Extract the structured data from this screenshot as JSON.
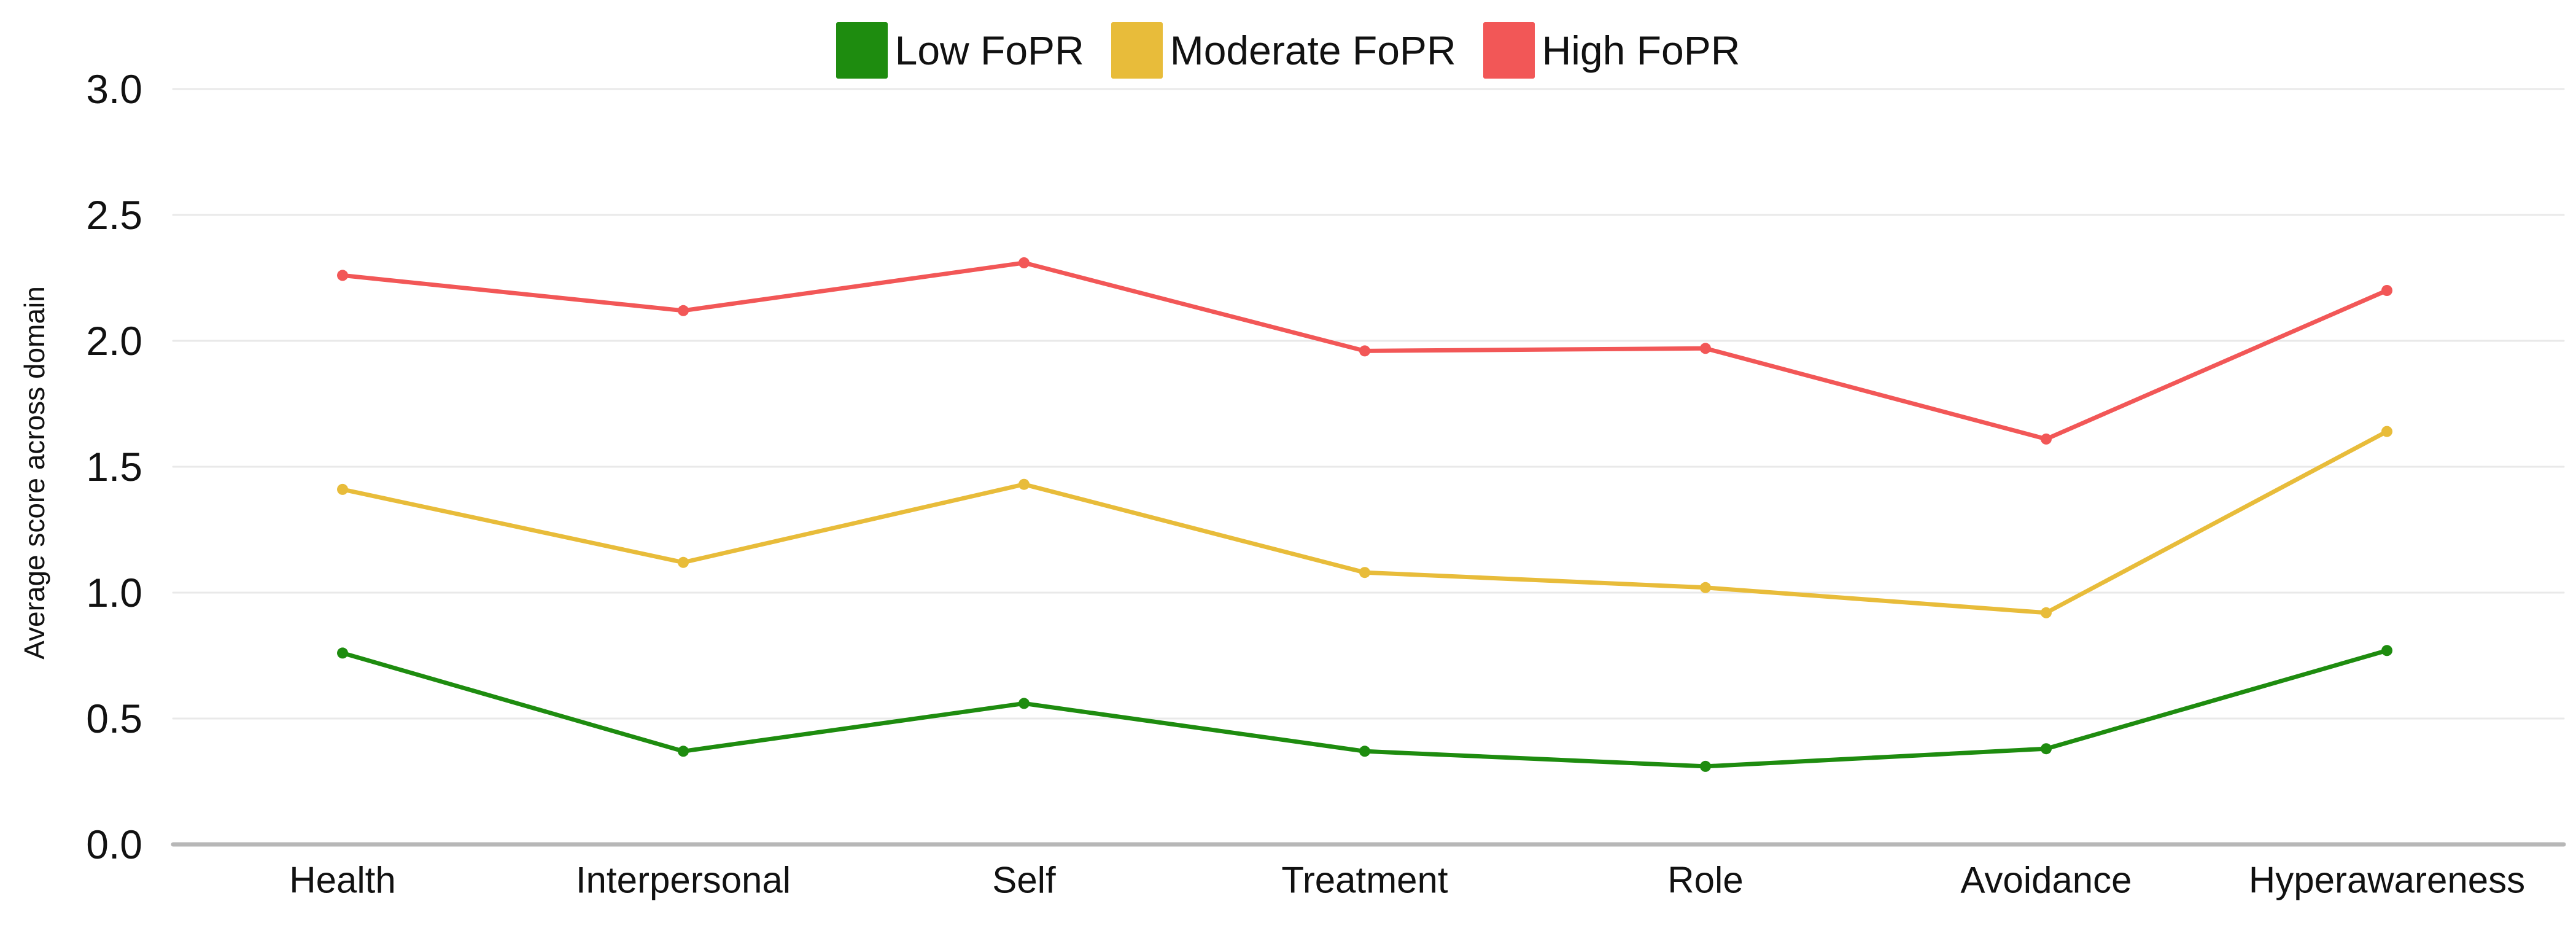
{
  "chart_data": {
    "type": "line",
    "title": "",
    "xlabel": "",
    "ylabel": "Average score across domain",
    "categories": [
      "Health",
      "Interpersonal",
      "Self",
      "Treatment",
      "Role",
      "Avoidance",
      "Hyperawareness"
    ],
    "series": [
      {
        "name": "Low FoPR",
        "color": "#1e8c0f",
        "values": [
          0.76,
          0.37,
          0.56,
          0.37,
          0.31,
          0.38,
          0.77
        ]
      },
      {
        "name": "Moderate FoPR",
        "color": "#e8bc3a",
        "values": [
          1.41,
          1.12,
          1.43,
          1.08,
          1.02,
          0.92,
          1.64
        ]
      },
      {
        "name": "High FoPR",
        "color": "#f25757",
        "values": [
          2.26,
          2.12,
          2.31,
          1.96,
          1.97,
          1.61,
          2.2
        ]
      }
    ],
    "ylim": [
      0,
      3
    ],
    "yticks": [
      0.0,
      0.5,
      1.0,
      1.5,
      2.0,
      2.5,
      3.0
    ],
    "ytick_labels": [
      "0.0",
      "0.5",
      "1.0",
      "1.5",
      "2.0",
      "2.5",
      "3.0"
    ],
    "legend_position": "top-center",
    "grid": "horizontal",
    "colors": {
      "grid": "#e9e9e9",
      "axis_line": "#b7b7b7",
      "text": "#111111",
      "background": "#ffffff"
    }
  }
}
